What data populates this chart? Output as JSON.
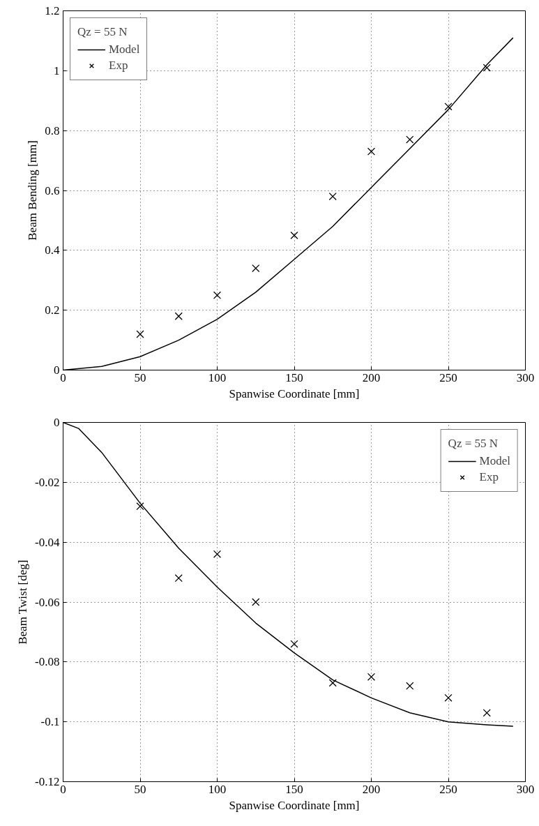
{
  "chart_data": [
    {
      "type": "line",
      "xlabel": "Spanwise Coordinate [mm]",
      "ylabel": "Beam Bending [mm]",
      "legend_title": "Qz = 55 N",
      "legend": "top left",
      "grid": true,
      "xlim": [
        0,
        300
      ],
      "ylim": [
        0,
        1.2
      ],
      "xticks": [
        0,
        50,
        100,
        150,
        200,
        250,
        300
      ],
      "yticks": [
        0,
        0.2,
        0.4,
        0.6,
        0.8,
        1,
        1.2
      ],
      "series": [
        {
          "name": "Model",
          "color": "#000000",
          "line_style": "solid",
          "marker": "none",
          "x": [
            0,
            25,
            50,
            75,
            100,
            125,
            150,
            175,
            200,
            225,
            250,
            275,
            292
          ],
          "values": [
            0,
            0.012,
            0.045,
            0.1,
            0.17,
            0.26,
            0.37,
            0.48,
            0.61,
            0.74,
            0.87,
            1.02,
            1.11
          ]
        },
        {
          "name": "Exp",
          "type": "scatter",
          "color": "#000000",
          "marker": "cross",
          "x": [
            50,
            75,
            100,
            125,
            150,
            175,
            200,
            225,
            250,
            275
          ],
          "values": [
            0.12,
            0.18,
            0.25,
            0.34,
            0.45,
            0.58,
            0.73,
            0.77,
            0.88,
            1.01
          ]
        }
      ]
    },
    {
      "type": "line",
      "xlabel": "Spanwise Coordinate [mm]",
      "ylabel": "Beam Twist [deg]",
      "legend_title": "Qz = 55 N",
      "legend": "top right",
      "grid": true,
      "xlim": [
        0,
        300
      ],
      "ylim": [
        -0.12,
        0
      ],
      "xticks": [
        0,
        50,
        100,
        150,
        200,
        250,
        300
      ],
      "yticks": [
        -0.12,
        -0.1,
        -0.08,
        -0.06,
        -0.04,
        -0.02,
        0
      ],
      "series": [
        {
          "name": "Model",
          "color": "#000000",
          "line_style": "solid",
          "marker": "none",
          "x": [
            0,
            10,
            25,
            50,
            75,
            100,
            125,
            150,
            175,
            200,
            225,
            250,
            275,
            292
          ],
          "values": [
            0,
            -0.002,
            -0.01,
            -0.027,
            -0.042,
            -0.055,
            -0.067,
            -0.077,
            -0.086,
            -0.092,
            -0.097,
            -0.1,
            -0.101,
            -0.1015
          ]
        },
        {
          "name": "Exp",
          "type": "scatter",
          "color": "#000000",
          "marker": "cross",
          "x": [
            50,
            75,
            100,
            125,
            150,
            175,
            200,
            225,
            250,
            275
          ],
          "values": [
            -0.028,
            -0.052,
            -0.044,
            -0.06,
            -0.074,
            -0.087,
            -0.085,
            -0.088,
            -0.092,
            -0.097
          ]
        }
      ]
    }
  ]
}
